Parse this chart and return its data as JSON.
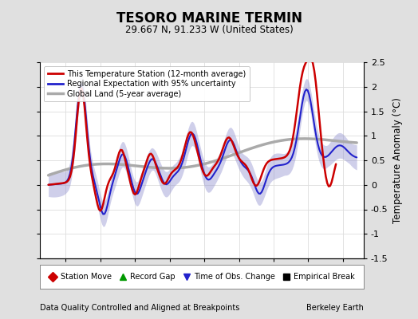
{
  "title": "TESORO MARINE TERMIN",
  "subtitle": "29.667 N, 91.233 W (United States)",
  "xlabel_left": "Data Quality Controlled and Aligned at Breakpoints",
  "xlabel_right": "Berkeley Earth",
  "ylabel": "Temperature Anomaly (°C)",
  "xlim": [
    1996.5,
    2015.2
  ],
  "ylim": [
    -1.5,
    2.5
  ],
  "yticks": [
    -1.5,
    -1.0,
    -0.5,
    0.0,
    0.5,
    1.0,
    1.5,
    2.0,
    2.5
  ],
  "xticks": [
    1998,
    2000,
    2002,
    2004,
    2006,
    2008,
    2010,
    2012,
    2014
  ],
  "legend_labels": [
    "This Temperature Station (12-month average)",
    "Regional Expectation with 95% uncertainty",
    "Global Land (5-year average)"
  ],
  "station_color": "#cc0000",
  "regional_color": "#2222cc",
  "regional_band_color": "#8888cc",
  "regional_band_alpha": 0.4,
  "global_color": "#aaaaaa",
  "global_lw": 2.5,
  "station_lw": 1.8,
  "regional_lw": 1.5,
  "plot_bg": "#ffffff",
  "fig_bg": "#e0e0e0",
  "grid_color": "#cccccc",
  "marker_legend": [
    {
      "label": "Station Move",
      "marker": "D",
      "color": "#cc0000"
    },
    {
      "label": "Record Gap",
      "marker": "^",
      "color": "#009900"
    },
    {
      "label": "Time of Obs. Change",
      "marker": "v",
      "color": "#2222cc"
    },
    {
      "label": "Empirical Break",
      "marker": "s",
      "color": "#000000"
    }
  ]
}
